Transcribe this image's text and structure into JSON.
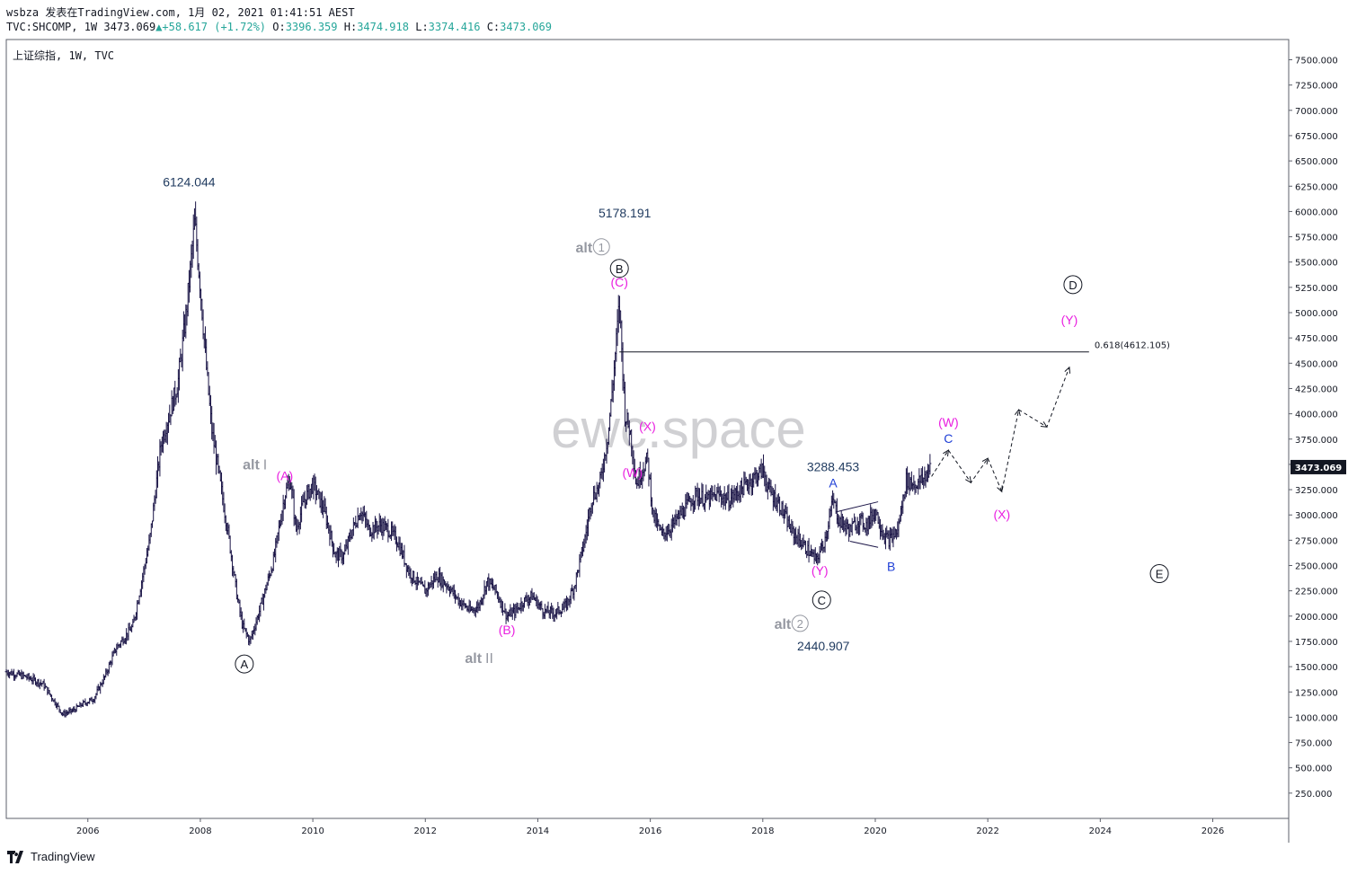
{
  "header": {
    "line1": "wsbza 发表在TradingView.com, 1月 02, 2021 01:41:51 AEST",
    "symbol": "TVC:SHCOMP, 1W",
    "last": "3473.069",
    "change": "+58.617 (+1.72%)",
    "o_label": "O:",
    "o": "3396.359",
    "h_label": "H:",
    "h": "3474.918",
    "l_label": "L:",
    "l": "3374.416",
    "c_label": "C:",
    "c": "3473.069"
  },
  "legend_title": "上证综指, 1W, TVC",
  "watermark": "ewc.space",
  "footer": {
    "brand": "TradingView"
  },
  "colors": {
    "bars": "#1a1446",
    "magenta": "#e91ee0",
    "navy": "#1f3a5f",
    "blue": "#1f3fd6",
    "gray": "#9598a1",
    "axis_badge": "#131722"
  },
  "chart_data": {
    "type": "bar",
    "timeframe": "1W",
    "x_range": [
      2004.55,
      2027.35
    ],
    "ylim": [
      0,
      7700
    ],
    "x_ticks": [
      "2006",
      "2008",
      "2010",
      "2012",
      "2014",
      "2016",
      "2018",
      "2020",
      "2022",
      "2024",
      "2026"
    ],
    "y_ticks": [
      "250.000",
      "500.000",
      "750.000",
      "1000.000",
      "1250.000",
      "1500.000",
      "1750.000",
      "2000.000",
      "2250.000",
      "2500.000",
      "2750.000",
      "3000.000",
      "3250.000",
      "3500.000",
      "3750.000",
      "4000.000",
      "4250.000",
      "4500.000",
      "4750.000",
      "5000.000",
      "5250.000",
      "5500.000",
      "5750.000",
      "6000.000",
      "6250.000",
      "6500.000",
      "6750.000",
      "7000.000",
      "7250.000",
      "7500.000"
    ],
    "last_price": "3473.069",
    "price_path": [
      [
        2004.55,
        1450
      ],
      [
        2004.9,
        1400
      ],
      [
        2005.2,
        1330
      ],
      [
        2005.45,
        1120
      ],
      [
        2005.55,
        1030
      ],
      [
        2005.75,
        1070
      ],
      [
        2005.9,
        1130
      ],
      [
        2006.1,
        1180
      ],
      [
        2006.3,
        1400
      ],
      [
        2006.5,
        1680
      ],
      [
        2006.8,
        1900
      ],
      [
        2006.95,
        2330
      ],
      [
        2007.1,
        2750
      ],
      [
        2007.3,
        3700
      ],
      [
        2007.45,
        4000
      ],
      [
        2007.6,
        4300
      ],
      [
        2007.75,
        5000
      ],
      [
        2007.9,
        5900
      ],
      [
        2008.0,
        5250
      ],
      [
        2008.1,
        4500
      ],
      [
        2008.2,
        3850
      ],
      [
        2008.3,
        3500
      ],
      [
        2008.5,
        2800
      ],
      [
        2008.65,
        2200
      ],
      [
        2008.75,
        1900
      ],
      [
        2008.88,
        1750
      ],
      [
        2009.05,
        2050
      ],
      [
        2009.3,
        2550
      ],
      [
        2009.5,
        3200
      ],
      [
        2009.6,
        3350
      ],
      [
        2009.7,
        2850
      ],
      [
        2009.85,
        3150
      ],
      [
        2010.0,
        3300
      ],
      [
        2010.2,
        3050
      ],
      [
        2010.4,
        2600
      ],
      [
        2010.55,
        2600
      ],
      [
        2010.7,
        2850
      ],
      [
        2010.85,
        3050
      ],
      [
        2011.0,
        2850
      ],
      [
        2011.2,
        2900
      ],
      [
        2011.35,
        2850
      ],
      [
        2011.5,
        2750
      ],
      [
        2011.7,
        2450
      ],
      [
        2011.9,
        2300
      ],
      [
        2012.0,
        2250
      ],
      [
        2012.2,
        2400
      ],
      [
        2012.4,
        2300
      ],
      [
        2012.6,
        2150
      ],
      [
        2012.8,
        2050
      ],
      [
        2012.95,
        2100
      ],
      [
        2013.1,
        2350
      ],
      [
        2013.25,
        2250
      ],
      [
        2013.45,
        2000
      ],
      [
        2013.6,
        2050
      ],
      [
        2013.75,
        2150
      ],
      [
        2013.9,
        2200
      ],
      [
        2014.1,
        2050
      ],
      [
        2014.3,
        2030
      ],
      [
        2014.5,
        2100
      ],
      [
        2014.65,
        2300
      ],
      [
        2014.85,
        2800
      ],
      [
        2014.95,
        3150
      ],
      [
        2015.1,
        3300
      ],
      [
        2015.25,
        3800
      ],
      [
        2015.35,
        4400
      ],
      [
        2015.45,
        5100
      ],
      [
        2015.55,
        4000
      ],
      [
        2015.65,
        3800
      ],
      [
        2015.75,
        3300
      ],
      [
        2015.85,
        3450
      ],
      [
        2015.95,
        3550
      ],
      [
        2016.05,
        3000
      ],
      [
        2016.2,
        2800
      ],
      [
        2016.4,
        2900
      ],
      [
        2016.6,
        3050
      ],
      [
        2016.8,
        3200
      ],
      [
        2017.0,
        3150
      ],
      [
        2017.2,
        3200
      ],
      [
        2017.4,
        3150
      ],
      [
        2017.6,
        3250
      ],
      [
        2017.8,
        3350
      ],
      [
        2018.0,
        3450
      ],
      [
        2018.1,
        3250
      ],
      [
        2018.3,
        3100
      ],
      [
        2018.5,
        2850
      ],
      [
        2018.65,
        2750
      ],
      [
        2018.8,
        2650
      ],
      [
        2018.95,
        2550
      ],
      [
        2019.1,
        2750
      ],
      [
        2019.25,
        3150
      ],
      [
        2019.35,
        2950
      ],
      [
        2019.55,
        2850
      ],
      [
        2019.7,
        2950
      ],
      [
        2019.85,
        2900
      ],
      [
        2020.0,
        3050
      ],
      [
        2020.15,
        2800
      ],
      [
        2020.25,
        2750
      ],
      [
        2020.4,
        2850
      ],
      [
        2020.55,
        3350
      ],
      [
        2020.7,
        3300
      ],
      [
        2020.85,
        3350
      ],
      [
        2020.99,
        3473
      ]
    ],
    "projection": [
      [
        2021.0,
        3380
      ],
      [
        2021.3,
        3640
      ],
      [
        2021.7,
        3320
      ],
      [
        2022.0,
        3560
      ],
      [
        2022.25,
        3230
      ],
      [
        2022.55,
        4040
      ],
      [
        2023.05,
        3870
      ],
      [
        2023.45,
        4460
      ]
    ],
    "fib_level": {
      "label": "0.618(4612.105)",
      "value": 4612.105,
      "x_start": 2015.45,
      "x_end": 2023.8
    },
    "annotations": [
      {
        "text": "6124.044",
        "x": 2007.8,
        "y": 6124.044,
        "color": "navy"
      },
      {
        "text": "5178.191",
        "x": 2015.45,
        "y": 5178.191,
        "color": "navy"
      },
      {
        "text": "3288.453",
        "x": 2019.25,
        "y": 3288.453,
        "color": "navy"
      },
      {
        "text": "2440.907",
        "x": 2018.95,
        "y": 2440.907,
        "color": "navy"
      },
      {
        "text": "(A)",
        "x": 2009.5,
        "color": "magenta"
      },
      {
        "text": "(B)",
        "x": 2013.45,
        "color": "magenta"
      },
      {
        "text": "(C)",
        "x": 2015.45,
        "color": "magenta"
      },
      {
        "text": "(W)",
        "x": 2015.65,
        "color": "magenta"
      },
      {
        "text": "(X)",
        "x": 2015.95,
        "color": "magenta"
      },
      {
        "text": "(Y)",
        "x": 2018.95,
        "color": "magenta"
      },
      {
        "text": "(W)",
        "x": 2021.3,
        "color": "magenta"
      },
      {
        "text": "(X)",
        "x": 2022.25,
        "color": "magenta"
      },
      {
        "text": "(Y)",
        "x": 2023.45,
        "color": "magenta"
      },
      {
        "text": "A",
        "x": 2019.25,
        "color": "blue"
      },
      {
        "text": "B",
        "x": 2020.25,
        "color": "blue"
      },
      {
        "text": "C",
        "x": 2021.3,
        "color": "blue"
      },
      {
        "text": "A",
        "x": 2008.75,
        "style": "circle"
      },
      {
        "text": "B",
        "x": 2015.45,
        "style": "circle"
      },
      {
        "text": "C",
        "x": 2018.95,
        "style": "circle"
      },
      {
        "text": "D",
        "x": 2023.45,
        "style": "circle"
      },
      {
        "text": "E",
        "x": 2025.05,
        "style": "circle"
      },
      {
        "text": "alt",
        "sub": "I",
        "x": 2009.5,
        "color": "gray"
      },
      {
        "text": "alt",
        "sub": "II",
        "x": 2013.45,
        "color": "gray"
      },
      {
        "text": "alt",
        "sub": "1",
        "x": 2015.45,
        "color": "gray"
      },
      {
        "text": "alt",
        "sub": "2",
        "x": 2018.95,
        "color": "gray"
      }
    ]
  }
}
